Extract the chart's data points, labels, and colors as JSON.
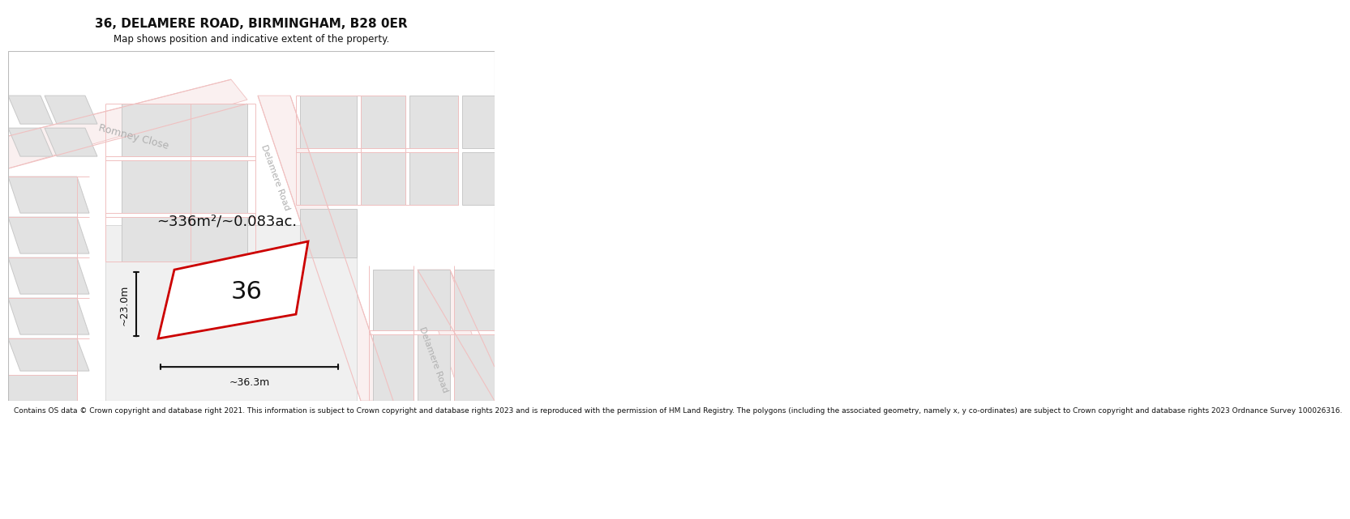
{
  "title": "36, DELAMERE ROAD, BIRMINGHAM, B28 0ER",
  "subtitle": "Map shows position and indicative extent of the property.",
  "footer": "Contains OS data © Crown copyright and database right 2021. This information is subject to Crown copyright and database rights 2023 and is reproduced with the permission of HM Land Registry. The polygons (including the associated geometry, namely x, y co-ordinates) are subject to Crown copyright and database rights 2023 Ordnance Survey 100026316.",
  "area_label": "~336m²/~0.083ac.",
  "number_label": "36",
  "width_label": "~36.3m",
  "height_label": "~23.0m",
  "map_bg": "#f7f7f7",
  "block_color": "#e2e2e2",
  "block_edge": "#c8c8c8",
  "road_pink": "#f0c0c0",
  "road_fill": "#faf0f0",
  "property_edge": "#cc0000",
  "road_label_color": "#b0b0b0",
  "measure_color": "#111111",
  "fig_bg": "#ffffff",
  "title_fontsize": 11,
  "subtitle_fontsize": 8.5,
  "area_fontsize": 13,
  "number_fontsize": 22,
  "meas_fontsize": 9,
  "footer_fontsize": 6.5,
  "road_label_fontsize": 9
}
